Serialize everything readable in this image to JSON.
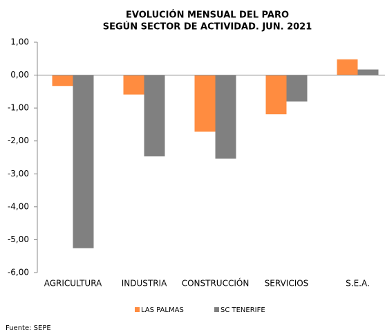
{
  "chart_data": {
    "type": "bar",
    "title": [
      "EVOLUCIÓN MENSUAL DEL PARO",
      "SEGÚN SECTOR DE ACTIVIDAD. JUN. 2021"
    ],
    "categories": [
      "AGRICULTURA",
      "INDUSTRIA",
      "CONSTRUCCIÓN",
      "SERVICIOS",
      "S.E.A."
    ],
    "series": [
      {
        "name": "LAS PALMAS",
        "color": "#ff8c40",
        "values": [
          -0.33,
          -0.59,
          -1.72,
          -1.19,
          0.48
        ]
      },
      {
        "name": "SC TENERIFE",
        "color": "#808080",
        "values": [
          -5.26,
          -2.47,
          -2.54,
          -0.8,
          0.17
        ]
      }
    ],
    "ylim": [
      -6,
      1
    ],
    "yticks": [
      {
        "value": 1,
        "label": "1,00"
      },
      {
        "value": 0,
        "label": "0,00"
      },
      {
        "value": -1,
        "label": "-1,00"
      },
      {
        "value": -2,
        "label": "-2,00"
      },
      {
        "value": -3,
        "label": "-3,00"
      },
      {
        "value": -4,
        "label": "-4,00"
      },
      {
        "value": -5,
        "label": "-5,00"
      },
      {
        "value": -6,
        "label": "-6,00"
      }
    ],
    "legend": "bottom",
    "source": "Fuente: SEPE"
  }
}
